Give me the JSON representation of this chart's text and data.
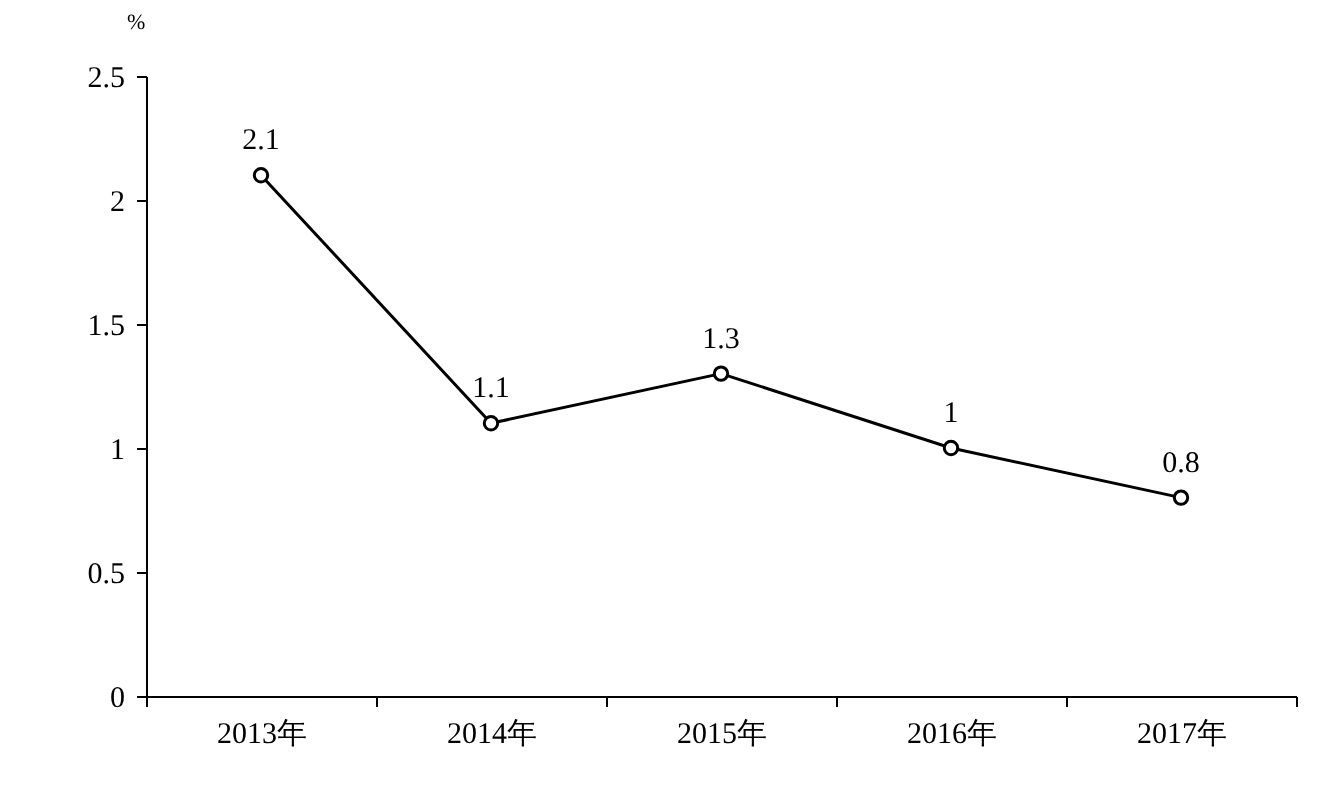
{
  "chart_data": {
    "type": "line",
    "ylabel": "%",
    "categories": [
      "2013年",
      "2014年",
      "2015年",
      "2016年",
      "2017年"
    ],
    "values": [
      2.1,
      1.1,
      1.3,
      1,
      0.8
    ],
    "color": "#000000",
    "ylim": [
      0,
      2.5
    ],
    "yticks": [
      0,
      0.5,
      1,
      1.5,
      2,
      2.5
    ],
    "grid": false,
    "marker": "circle",
    "line_style": "solid",
    "data_labels": true
  }
}
